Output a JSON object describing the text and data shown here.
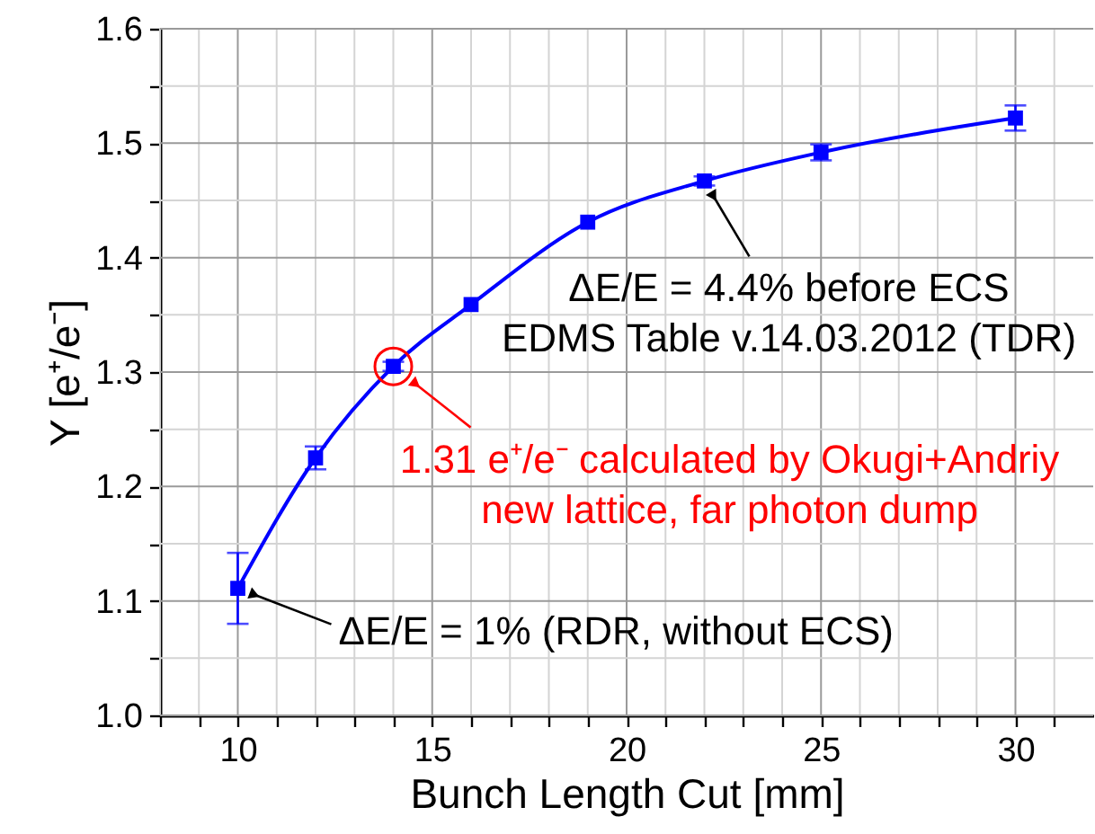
{
  "chart_data": {
    "type": "line",
    "xlabel": "Bunch Length Cut [mm]",
    "ylabel": "Y [e⁺/e⁻]",
    "x": [
      10,
      12,
      14,
      16,
      19,
      22,
      25,
      30
    ],
    "series": [
      {
        "color": "#0000ff",
        "values": [
          1.111,
          1.225,
          1.305,
          1.359,
          1.431,
          1.467,
          1.492,
          1.522
        ],
        "errors": [
          0.031,
          0.01,
          0.004,
          null,
          null,
          0.004,
          0.007,
          0.011
        ]
      }
    ],
    "marker": "square",
    "line_style": "solid",
    "grid": true,
    "xlim": [
      8,
      32
    ],
    "xticks": [
      {
        "value": 8,
        "label": null
      },
      {
        "value": 9,
        "label": null
      },
      10,
      {
        "value": 11,
        "label": null
      },
      {
        "value": 12,
        "label": null
      },
      {
        "value": 13,
        "label": null
      },
      {
        "value": 14,
        "label": null
      },
      15,
      {
        "value": 16,
        "label": null
      },
      {
        "value": 17,
        "label": null
      },
      {
        "value": 18,
        "label": null
      },
      {
        "value": 19,
        "label": null
      },
      20,
      {
        "value": 21,
        "label": null
      },
      {
        "value": 22,
        "label": null
      },
      {
        "value": 23,
        "label": null
      },
      {
        "value": 24,
        "label": null
      },
      25,
      {
        "value": 26,
        "label": null
      },
      {
        "value": 27,
        "label": null
      },
      {
        "value": 28,
        "label": null
      },
      {
        "value": 29,
        "label": null
      },
      30,
      {
        "value": 31,
        "label": null
      }
    ],
    "ylim": [
      1.0,
      1.6
    ],
    "yticks": [
      {
        "value": 1.0,
        "label": "1.0"
      },
      {
        "value": 1.05,
        "label": null
      },
      1.1,
      {
        "value": 1.15,
        "label": null
      },
      1.2,
      {
        "value": 1.25,
        "label": null
      },
      1.3,
      {
        "value": 1.35,
        "label": null
      },
      1.4,
      {
        "value": 1.45,
        "label": null
      },
      1.5,
      {
        "value": 1.55,
        "label": null
      },
      1.6
    ],
    "annotations": [
      {
        "text": "ΔE/E = 1% (RDR, without ECS)",
        "x": 10,
        "y": 1.111
      },
      {
        "text": "ΔE/E = 4.4% before ECS\nEDMS Table v.14.03.2012 (TDR)",
        "x": 22,
        "y": 1.467
      },
      {
        "text": "1.31 e⁺/e⁻ calculated by Okugi+Andriy\nnew lattice, far photon dump",
        "x": 14,
        "y": 1.305
      }
    ]
  }
}
